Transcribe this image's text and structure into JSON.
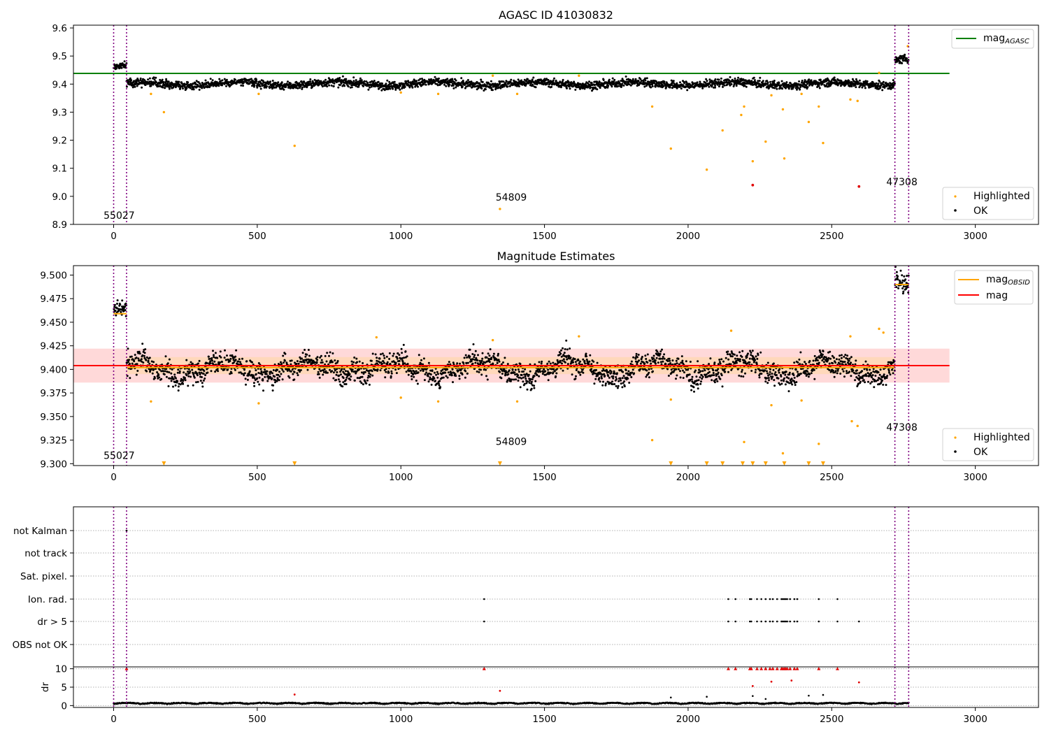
{
  "chart_data": [
    {
      "type": "scatter",
      "title": "AGASC ID 41030832",
      "xlabel": "",
      "ylabel": "",
      "xlim": [
        -140,
        3220
      ],
      "ylim": [
        8.9,
        9.61
      ],
      "xticks": [
        0,
        500,
        1000,
        1500,
        2000,
        2500,
        3000
      ],
      "yticks": [
        8.9,
        9.0,
        9.1,
        9.2,
        9.3,
        9.4,
        9.5,
        9.6
      ],
      "ytick_labels": [
        "8.9",
        "9.0",
        "9.1",
        "9.2",
        "9.3",
        "9.4",
        "9.5",
        "9.6"
      ],
      "legend_top": {
        "position": "upper right",
        "entries": [
          {
            "label": "mag",
            "subscript": "AGASC",
            "color": "#008000",
            "kind": "line"
          }
        ]
      },
      "legend_bottom": {
        "position": "lower right",
        "entries": [
          {
            "label": "Highlighted",
            "color": "#ffa500",
            "kind": "point"
          },
          {
            "label": "OK",
            "color": "#000000",
            "kind": "point"
          }
        ]
      },
      "hlines": [
        {
          "y": 9.438,
          "x0": -140,
          "x1": 2910,
          "color": "#008000"
        }
      ],
      "vlines": [
        0,
        45,
        2720,
        2768
      ],
      "vline_color": "#800080",
      "annotations": [
        {
          "text": "55027",
          "x": -35,
          "y": 8.92
        },
        {
          "text": "54809",
          "x": 1330,
          "y": 8.985
        },
        {
          "text": "47308",
          "x": 2690,
          "y": 9.04
        }
      ],
      "highlighted": [
        [
          130,
          9.365
        ],
        [
          175,
          9.3
        ],
        [
          505,
          9.365
        ],
        [
          630,
          9.18
        ],
        [
          1000,
          9.37
        ],
        [
          1130,
          9.365
        ],
        [
          1320,
          9.43
        ],
        [
          1345,
          8.955
        ],
        [
          1405,
          9.365
        ],
        [
          1620,
          9.43
        ],
        [
          1875,
          9.32
        ],
        [
          1940,
          9.17
        ],
        [
          2065,
          9.095
        ],
        [
          2120,
          9.235
        ],
        [
          2185,
          9.29
        ],
        [
          2195,
          9.32
        ],
        [
          2225,
          9.125
        ],
        [
          2270,
          9.195
        ],
        [
          2290,
          9.36
        ],
        [
          2330,
          9.31
        ],
        [
          2335,
          9.135
        ],
        [
          2395,
          9.365
        ],
        [
          2420,
          9.265
        ],
        [
          2455,
          9.32
        ],
        [
          2470,
          9.19
        ],
        [
          2565,
          9.345
        ],
        [
          2590,
          9.34
        ],
        [
          2665,
          9.44
        ],
        [
          2765,
          9.535
        ]
      ],
      "red_points": [
        [
          2225,
          9.04
        ],
        [
          2595,
          9.035
        ]
      ],
      "ok_segments": [
        {
          "x0": 0,
          "x1": 45,
          "mean": 9.462,
          "spread": 0.012
        },
        {
          "x0": 45,
          "x1": 2720,
          "mean": 9.401,
          "spread": 0.016
        },
        {
          "x0": 2720,
          "x1": 2768,
          "mean": 9.49,
          "spread": 0.015
        }
      ]
    },
    {
      "type": "scatter",
      "title": "Magnitude Estimates",
      "xlim": [
        -140,
        3220
      ],
      "ylim": [
        9.298,
        9.51
      ],
      "xticks": [
        0,
        500,
        1000,
        1500,
        2000,
        2500,
        3000
      ],
      "yticks": [
        9.3,
        9.325,
        9.35,
        9.375,
        9.4,
        9.425,
        9.45,
        9.475,
        9.5
      ],
      "ytick_labels": [
        "9.300",
        "9.325",
        "9.350",
        "9.375",
        "9.400",
        "9.425",
        "9.450",
        "9.475",
        "9.500"
      ],
      "legend_top": {
        "position": "upper right",
        "entries": [
          {
            "label": "mag",
            "subscript": "OBSID",
            "color": "#ffa500",
            "kind": "line"
          },
          {
            "label": "mag",
            "subscript": "",
            "color": "#ff0000",
            "kind": "line"
          }
        ]
      },
      "legend_bottom": {
        "position": "lower right",
        "entries": [
          {
            "label": "Highlighted",
            "color": "#ffa500",
            "kind": "point"
          },
          {
            "label": "OK",
            "color": "#000000",
            "kind": "point"
          }
        ]
      },
      "mag_line": {
        "y": 9.404,
        "x0": -140,
        "x1": 2910,
        "color": "#ff0000"
      },
      "band_outer": {
        "y0": 9.386,
        "y1": 9.422,
        "x0": -140,
        "x1": 2910,
        "color": "#ffcccc"
      },
      "band_inner": {
        "y0": 9.395,
        "y1": 9.413,
        "x0": 45,
        "x1": 2720,
        "color": "#ffd7b0"
      },
      "obsid_mags": [
        {
          "x0": 0,
          "x1": 45,
          "y": 9.459
        },
        {
          "x0": 45,
          "x1": 2720,
          "y": 9.402
        },
        {
          "x0": 2720,
          "x1": 2768,
          "y": 9.49
        }
      ],
      "vlines": [
        0,
        45,
        2720,
        2768
      ],
      "annotations": [
        {
          "text": "55027",
          "x": -35,
          "y": 9.305
        },
        {
          "text": "54809",
          "x": 1330,
          "y": 9.32
        },
        {
          "text": "47308",
          "x": 2690,
          "y": 9.335
        }
      ],
      "highlighted": [
        [
          130,
          9.366
        ],
        [
          505,
          9.364
        ],
        [
          915,
          9.434
        ],
        [
          1000,
          9.37
        ],
        [
          1130,
          9.366
        ],
        [
          1320,
          9.431
        ],
        [
          1405,
          9.366
        ],
        [
          1620,
          9.435
        ],
        [
          1875,
          9.325
        ],
        [
          1940,
          9.368
        ],
        [
          2150,
          9.441
        ],
        [
          2195,
          9.323
        ],
        [
          2290,
          9.362
        ],
        [
          2330,
          9.311
        ],
        [
          2395,
          9.367
        ],
        [
          2455,
          9.321
        ],
        [
          2565,
          9.435
        ],
        [
          2570,
          9.345
        ],
        [
          2590,
          9.34
        ],
        [
          2665,
          9.443
        ],
        [
          2680,
          9.439
        ]
      ],
      "below_range_x": [
        175,
        630,
        1345,
        1940,
        2065,
        2120,
        2190,
        2225,
        2270,
        2335,
        2420,
        2470
      ],
      "ok_segments": [
        {
          "x0": 0,
          "x1": 45,
          "mean": 9.459,
          "spread": 0.007
        },
        {
          "x0": 45,
          "x1": 2720,
          "mean": 9.401,
          "spread": 0.011
        },
        {
          "x0": 2720,
          "x1": 2768,
          "mean": 9.49,
          "spread": 0.01
        }
      ]
    },
    {
      "type": "scatter",
      "title": "",
      "xlim": [
        -140,
        3220
      ],
      "flag_rows": [
        "not Kalman",
        "not track",
        "Sat. pixel.",
        "Ion. rad.",
        "dr > 5",
        "OBS not OK"
      ],
      "flag_points": {
        "not Kalman": [
          45
        ],
        "not track": [],
        "Sat. pixel.": [],
        "Ion. rad.": [
          1290,
          2140,
          2165,
          2215,
          2220,
          2240,
          2255,
          2270,
          2285,
          2295,
          2310,
          2325,
          2330,
          2335,
          2340,
          2345,
          2355,
          2370,
          2380,
          2455,
          2520
        ],
        "dr > 5": [
          1290,
          2140,
          2165,
          2215,
          2220,
          2240,
          2255,
          2270,
          2285,
          2295,
          2310,
          2325,
          2330,
          2335,
          2340,
          2345,
          2355,
          2370,
          2380,
          2455,
          2520,
          2595
        ],
        "OBS not OK": []
      }
    },
    {
      "type": "scatter",
      "title": "",
      "ylabel": "dr",
      "xlim": [
        -140,
        3220
      ],
      "ylim": [
        -0.5,
        10.5
      ],
      "xticks": [
        0,
        500,
        1000,
        1500,
        2000,
        2500,
        3000
      ],
      "yticks": [
        0,
        5,
        10
      ],
      "ytick_labels": [
        "0",
        "5",
        "10"
      ],
      "capped_at_10_x": [
        45,
        1290,
        2140,
        2165,
        2215,
        2220,
        2240,
        2255,
        2270,
        2285,
        2295,
        2310,
        2325,
        2330,
        2335,
        2340,
        2345,
        2355,
        2370,
        2380,
        2455,
        2520
      ],
      "red_dots": [
        [
          630,
          3.0
        ],
        [
          1345,
          4.0
        ],
        [
          2225,
          5.3
        ],
        [
          2290,
          6.5
        ],
        [
          2360,
          6.8
        ],
        [
          2595,
          6.3
        ]
      ],
      "mid_points": [
        [
          1940,
          2.2
        ],
        [
          2065,
          2.4
        ],
        [
          2225,
          2.6
        ],
        [
          2270,
          1.8
        ],
        [
          2420,
          2.7
        ],
        [
          2470,
          2.9
        ]
      ]
    }
  ]
}
